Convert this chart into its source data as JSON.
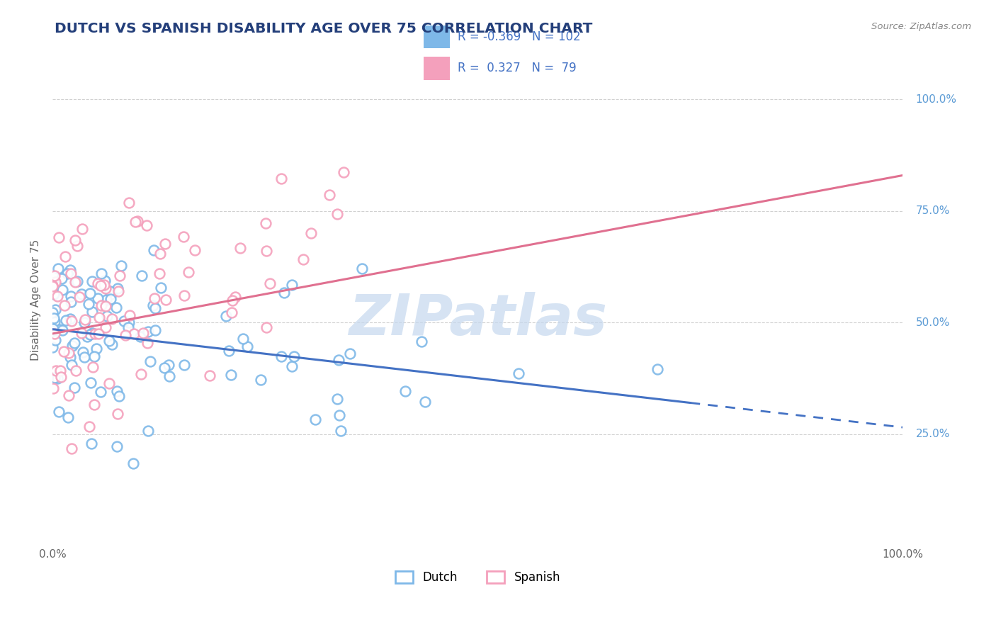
{
  "title": "DUTCH VS SPANISH DISABILITY AGE OVER 75 CORRELATION CHART",
  "source": "Source: ZipAtlas.com",
  "ylabel": "Disability Age Over 75",
  "legend_line1": "R = -0.369   N = 102",
  "legend_line2": "R =  0.327   N =  79",
  "dutch_color": "#7EB8E8",
  "spanish_color": "#F4A0BC",
  "dutch_line_color": "#4472C4",
  "spanish_line_color": "#E07090",
  "yaxis_label_color": "#5B9BD5",
  "title_color": "#243F7A",
  "watermark_color": "#C5D8EE",
  "background_color": "#FFFFFF",
  "grid_color": "#CCCCCC",
  "xlim": [
    0,
    100
  ],
  "ylim": [
    0,
    110
  ],
  "yticks": [
    25,
    50,
    75,
    100
  ],
  "ytick_labels": [
    "25.0%",
    "50.0%",
    "75.0%",
    "100.0%"
  ],
  "dutch_line_start_x": 0,
  "dutch_line_start_y": 48.5,
  "dutch_line_end_x": 100,
  "dutch_line_end_y": 26.5,
  "dutch_solid_end_x": 75,
  "spanish_line_start_x": 0,
  "spanish_line_start_y": 47.5,
  "spanish_line_end_x": 100,
  "spanish_line_end_y": 83.0
}
